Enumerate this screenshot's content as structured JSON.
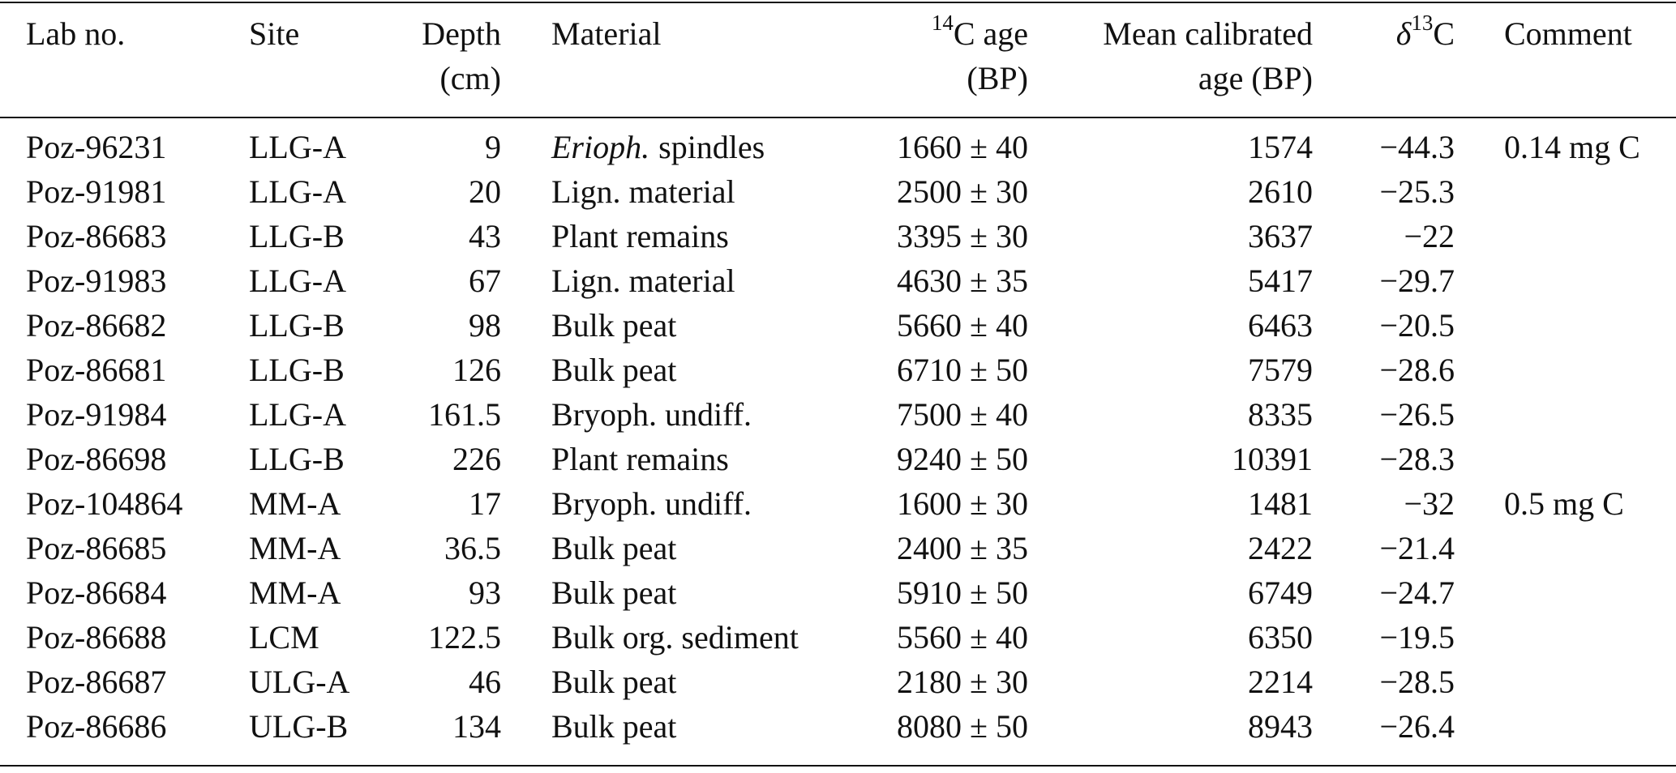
{
  "table": {
    "header": [
      {
        "lines": [
          "Lab no."
        ]
      },
      {
        "lines": [
          "Site"
        ]
      },
      {
        "lines": [
          "Depth",
          "(cm)"
        ]
      },
      {
        "lines": [
          "Material"
        ]
      },
      {
        "sup": "14",
        "lines": [
          "C age",
          "(BP)"
        ]
      },
      {
        "lines": [
          "Mean calibrated",
          "age (BP)"
        ]
      },
      {
        "pre": "δ",
        "sup": "13",
        "lines": [
          "C"
        ]
      },
      {
        "lines": [
          "Comment"
        ]
      }
    ],
    "rows": [
      [
        "Poz-96231",
        "LLG-A",
        "9",
        {
          "italic": "Erioph.",
          "text": "spindles"
        },
        "1660 ± 40",
        "1574",
        "−44.3",
        "0.14 mg C"
      ],
      [
        "Poz-91981",
        "LLG-A",
        "20",
        "Lign. material",
        "2500 ± 30",
        "2610",
        "−25.3"
      ],
      [
        "Poz-86683",
        "LLG-B",
        "43",
        "Plant remains",
        "3395 ± 30",
        "3637",
        "−22"
      ],
      [
        "Poz-91983",
        "LLG-A",
        "67",
        "Lign. material",
        "4630 ± 35",
        "5417",
        "−29.7"
      ],
      [
        "Poz-86682",
        "LLG-B",
        "98",
        "Bulk peat",
        "5660 ± 40",
        "6463",
        "−20.5"
      ],
      [
        "Poz-86681",
        "LLG-B",
        "126",
        "Bulk peat",
        "6710 ± 50",
        "7579",
        "−28.6"
      ],
      [
        "Poz-91984",
        "LLG-A",
        "161.5",
        "Bryoph. undiff.",
        "7500 ± 40",
        "8335",
        "−26.5"
      ],
      [
        "Poz-86698",
        "LLG-B",
        "226",
        "Plant remains",
        "9240 ± 50",
        "10391",
        "−28.3"
      ],
      [
        "Poz-104864",
        "MM-A",
        "17",
        "Bryoph. undiff.",
        "1600 ± 30",
        "1481",
        "−32",
        "0.5 mg C"
      ],
      [
        "Poz-86685",
        "MM-A",
        "36.5",
        "Bulk peat",
        "2400 ± 35",
        "2422",
        "−21.4"
      ],
      [
        "Poz-86684",
        "MM-A",
        "93",
        "Bulk peat",
        "5910 ± 50",
        "6749",
        "−24.7"
      ],
      [
        "Poz-86688",
        "LCM",
        "122.5",
        "Bulk org. sediment",
        "5560 ± 40",
        "6350",
        "−19.5"
      ],
      [
        "Poz-86687",
        "ULG-A",
        "46",
        "Bulk peat",
        "2180 ± 30",
        "2214",
        "−28.5"
      ],
      [
        "Poz-86686",
        "ULG-B",
        "134",
        "Bulk peat",
        "8080 ± 50",
        "8943",
        "−26.4"
      ]
    ]
  }
}
